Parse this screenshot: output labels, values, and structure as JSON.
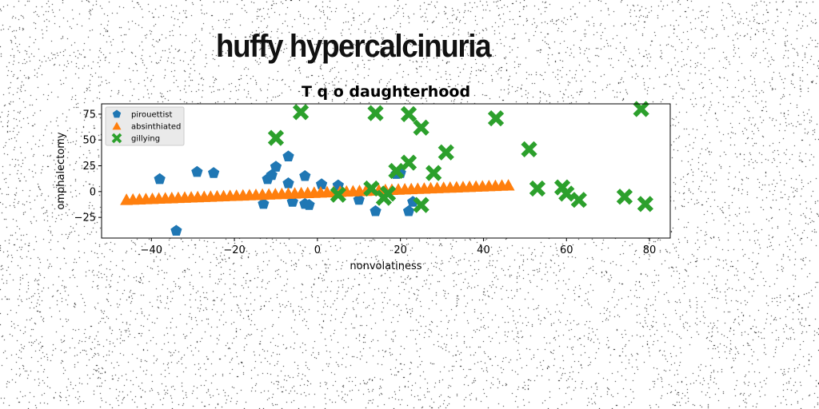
{
  "suptitle": "huffy hypercalcinuria",
  "chart_data": {
    "type": "scatter",
    "title": "T q o daughterhood",
    "xlabel": "nonvolatiness",
    "ylabel": "omphalectomy",
    "xlim": [
      -52,
      85
    ],
    "ylim": [
      -45,
      85
    ],
    "xticks": [
      -40,
      -20,
      0,
      20,
      40,
      60,
      80
    ],
    "yticks": [
      -25,
      0,
      25,
      50,
      75
    ],
    "xtick_labels": [
      "−40",
      "−20",
      "0",
      "20",
      "40",
      "60",
      "80"
    ],
    "ytick_labels": [
      "−25",
      "0",
      "25",
      "50",
      "75"
    ],
    "grid": false,
    "legend_position": "top-left",
    "series": [
      {
        "name": "pirouettist",
        "marker": "pentagon",
        "color": "#1f77b4",
        "x": [
          -38,
          -34,
          -29,
          -25,
          -13,
          -12,
          -11,
          -10,
          -7,
          -7,
          -6,
          -3,
          -3,
          -2,
          1,
          5,
          10,
          14,
          19,
          20,
          22,
          23
        ],
        "y": [
          12,
          -38,
          19,
          18,
          -12,
          12,
          16,
          24,
          34,
          8,
          -10,
          15,
          -12,
          -13,
          7,
          6,
          -8,
          -19,
          17,
          18,
          -19,
          -10
        ]
      },
      {
        "name": "absinthiated",
        "marker": "triangle",
        "color": "#ff7f0e",
        "x_range": [
          -46,
          46
        ],
        "y_range": [
          -8,
          6
        ],
        "count": 60
      },
      {
        "name": "gillying",
        "marker": "x",
        "color": "#2ca02c",
        "x": [
          -10,
          -4,
          5,
          13,
          14,
          16,
          17,
          19,
          22,
          22,
          25,
          25,
          28,
          31,
          43,
          51,
          53,
          59,
          60,
          63,
          74,
          78,
          79
        ],
        "y": [
          52,
          77,
          -3,
          3,
          76,
          -6,
          -2,
          20,
          28,
          75,
          -13,
          62,
          18,
          38,
          71,
          41,
          3,
          4,
          -2,
          -8,
          -5,
          80,
          -12
        ]
      }
    ]
  }
}
